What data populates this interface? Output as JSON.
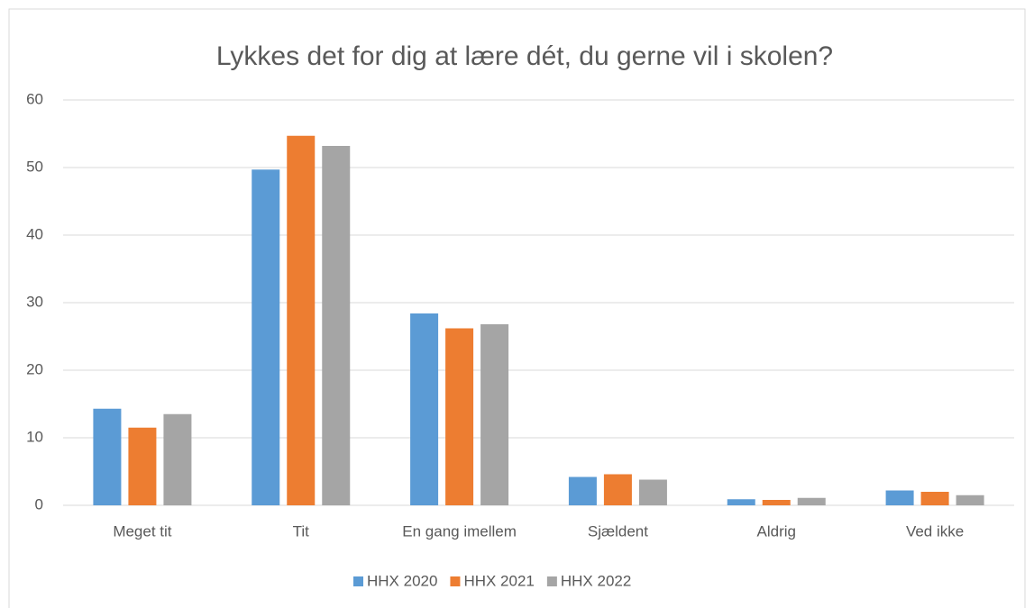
{
  "chart_data": {
    "type": "bar",
    "title": "Lykkes det for dig at lære dét, du gerne vil i skolen?",
    "categories": [
      "Meget tit",
      "Tit",
      "En gang imellem",
      "Sjældent",
      "Aldrig",
      "Ved ikke"
    ],
    "series": [
      {
        "name": "HHX 2020",
        "color": "#5b9bd5",
        "values": [
          14.3,
          49.7,
          28.4,
          4.2,
          0.9,
          2.2
        ]
      },
      {
        "name": "HHX 2021",
        "color": "#ed7d31",
        "values": [
          11.5,
          54.7,
          26.2,
          4.6,
          0.8,
          2.0
        ]
      },
      {
        "name": "HHX 2022",
        "color": "#a5a5a5",
        "values": [
          13.5,
          53.2,
          26.8,
          3.8,
          1.1,
          1.5
        ]
      }
    ],
    "ylim": [
      0,
      60
    ],
    "yticks": [
      0,
      10,
      20,
      30,
      40,
      50,
      60
    ],
    "grid": true
  }
}
